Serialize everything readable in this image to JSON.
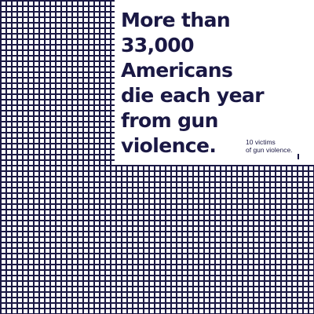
{
  "headline": {
    "line1": "More than",
    "line2": "33,000",
    "line3": "Americans",
    "line4": "die each year",
    "line5": "from gun",
    "line6": "violence."
  },
  "legend": {
    "line1": "10 victims",
    "line2": "of gun violence."
  },
  "colors": {
    "ink": "#1a1844",
    "background": "#ffffff"
  }
}
